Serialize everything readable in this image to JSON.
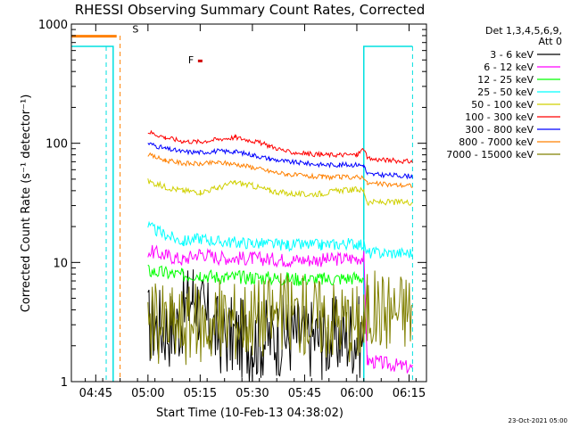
{
  "chart_data": {
    "type": "line",
    "title": "RHESSI Observing Summary Count Rates, Corrected",
    "xlabel": "Start Time (10-Feb-13 04:38:02)",
    "ylabel": "Corrected Count Rate (s⁻¹ detector⁻¹)",
    "yscale": "log",
    "ylim": [
      1,
      1000
    ],
    "xlim_minutes": [
      278,
      380
    ],
    "x_ticks": [
      {
        "t": 285,
        "label": "04:45"
      },
      {
        "t": 300,
        "label": "05:00"
      },
      {
        "t": 315,
        "label": "05:15"
      },
      {
        "t": 330,
        "label": "05:30"
      },
      {
        "t": 345,
        "label": "05:45"
      },
      {
        "t": 360,
        "label": "06:00"
      },
      {
        "t": 375,
        "label": "06:15"
      }
    ],
    "y_ticks": [
      {
        "v": 1,
        "label": "1"
      },
      {
        "v": 10,
        "label": "10"
      },
      {
        "v": 100,
        "label": "100"
      },
      {
        "v": 1000,
        "label": "1000"
      }
    ],
    "legend_header": [
      "Det 1,3,4,5,6,9,",
      "Att 0"
    ],
    "legend_position": "right",
    "footer": "23-Oct-2021 05:00",
    "flags": [
      {
        "label": "S",
        "t": 294,
        "color": "#ff8000"
      },
      {
        "label": "F",
        "t": 310,
        "color": "#d00000"
      }
    ],
    "series": [
      {
        "name": "3 - 6 keV",
        "color": "#000000",
        "values": [
          [
            300,
            3.0
          ],
          [
            308,
            2.8
          ],
          [
            313,
            5.5
          ],
          [
            316,
            3.5
          ],
          [
            320,
            2.5
          ],
          [
            330,
            2.2
          ],
          [
            340,
            2.5
          ],
          [
            350,
            2.3
          ],
          [
            360,
            2.5
          ],
          [
            362,
            2.2
          ]
        ]
      },
      {
        "name": "6 - 12 keV",
        "color": "#ff00ff",
        "values": [
          [
            300,
            12.5
          ],
          [
            305,
            11.5
          ],
          [
            310,
            10.5
          ],
          [
            315,
            12.0
          ],
          [
            320,
            11.0
          ],
          [
            330,
            10.8
          ],
          [
            340,
            10.5
          ],
          [
            350,
            10.5
          ],
          [
            362,
            11.0
          ],
          [
            363,
            1.5
          ],
          [
            376,
            1.3
          ]
        ]
      },
      {
        "name": "12 - 25 keV",
        "color": "#00ff00",
        "values": [
          [
            300,
            8.5
          ],
          [
            310,
            7.8
          ],
          [
            315,
            8.0
          ],
          [
            320,
            7.5
          ],
          [
            330,
            7.5
          ],
          [
            340,
            7.3
          ],
          [
            350,
            7.2
          ],
          [
            362,
            7.5
          ]
        ]
      },
      {
        "name": "25 - 50 keV",
        "color": "#00ffff",
        "values": [
          [
            300,
            20.0
          ],
          [
            305,
            17.0
          ],
          [
            310,
            15.0
          ],
          [
            315,
            16.0
          ],
          [
            320,
            15.0
          ],
          [
            330,
            14.5
          ],
          [
            340,
            14.0
          ],
          [
            350,
            14.0
          ],
          [
            360,
            14.5
          ],
          [
            362,
            14.0
          ],
          [
            363,
            12.0
          ],
          [
            376,
            12.0
          ]
        ]
      },
      {
        "name": "50 - 100 keV",
        "color": "#d0d000",
        "values": [
          [
            300,
            48
          ],
          [
            305,
            43
          ],
          [
            310,
            40
          ],
          [
            315,
            39
          ],
          [
            320,
            42
          ],
          [
            325,
            47
          ],
          [
            330,
            44
          ],
          [
            335,
            40
          ],
          [
            340,
            38
          ],
          [
            345,
            37
          ],
          [
            350,
            38
          ],
          [
            355,
            40
          ],
          [
            360,
            41
          ],
          [
            362,
            40
          ],
          [
            363,
            32
          ],
          [
            376,
            32
          ]
        ]
      },
      {
        "name": "100 - 300 keV",
        "color": "#ff0000",
        "values": [
          [
            300,
            125
          ],
          [
            305,
            112
          ],
          [
            310,
            104
          ],
          [
            315,
            103
          ],
          [
            320,
            108
          ],
          [
            325,
            112
          ],
          [
            330,
            105
          ],
          [
            335,
            95
          ],
          [
            340,
            85
          ],
          [
            345,
            82
          ],
          [
            350,
            80
          ],
          [
            355,
            80
          ],
          [
            360,
            80
          ],
          [
            362,
            90
          ],
          [
            363,
            74
          ],
          [
            376,
            70
          ]
        ]
      },
      {
        "name": "300 - 800 keV",
        "color": "#0000ff",
        "values": [
          [
            300,
            100
          ],
          [
            305,
            90
          ],
          [
            310,
            85
          ],
          [
            315,
            84
          ],
          [
            320,
            86
          ],
          [
            325,
            85
          ],
          [
            330,
            80
          ],
          [
            335,
            74
          ],
          [
            340,
            70
          ],
          [
            345,
            68
          ],
          [
            350,
            66
          ],
          [
            355,
            66
          ],
          [
            360,
            66
          ],
          [
            362,
            65
          ],
          [
            363,
            55
          ],
          [
            376,
            53
          ]
        ]
      },
      {
        "name": "800 - 7000 keV",
        "color": "#ff8000",
        "values": [
          [
            300,
            80
          ],
          [
            305,
            72
          ],
          [
            310,
            68
          ],
          [
            315,
            67
          ],
          [
            320,
            69
          ],
          [
            325,
            67
          ],
          [
            330,
            63
          ],
          [
            335,
            58
          ],
          [
            340,
            55
          ],
          [
            345,
            53
          ],
          [
            350,
            52
          ],
          [
            355,
            52
          ],
          [
            360,
            52
          ],
          [
            362,
            52
          ],
          [
            363,
            46
          ],
          [
            376,
            44
          ]
        ]
      },
      {
        "name": "7000 - 15000 keV",
        "color": "#808000",
        "values": [
          [
            300,
            3.2
          ],
          [
            310,
            3.0
          ],
          [
            320,
            3.2
          ],
          [
            330,
            3.5
          ],
          [
            340,
            3.8
          ],
          [
            350,
            3.5
          ],
          [
            360,
            3.2
          ],
          [
            362,
            3.0
          ],
          [
            363,
            4.0
          ],
          [
            376,
            4.0
          ]
        ]
      }
    ]
  }
}
